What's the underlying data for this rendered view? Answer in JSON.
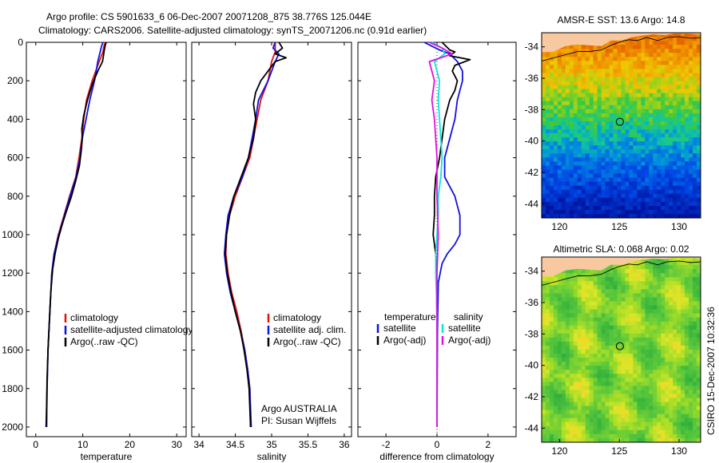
{
  "header": {
    "line1": "Argo profile: CS 5901633_6 06-Dec-2007 20071208_875 38.776S 125.044E",
    "line2": "Climatology: CARS2006. Satellite-adjusted climatology: synTS_20071206.nc (0.91d earlier)"
  },
  "side_label": "CSIRO 15-Dec-2007 10:32:36",
  "colors": {
    "red": "#e01010",
    "blue": "#1010e0",
    "black": "#000000",
    "cyan": "#10e0e0",
    "magenta": "#e010e0"
  },
  "chart_data": [
    {
      "type": "line",
      "panel": "temperature",
      "xlabel": "temperature",
      "xlim": [
        -2,
        32
      ],
      "ylim": [
        2050,
        0
      ],
      "xticks": [
        0,
        10,
        20,
        30
      ],
      "yticks": [
        0,
        200,
        400,
        600,
        800,
        1000,
        1200,
        1400,
        1600,
        1800,
        2000
      ],
      "legend": [
        "climatology",
        "satellite-adjusted climatology",
        "Argo(..raw -QC)"
      ],
      "series": [
        {
          "name": "climatology",
          "color": "red",
          "points": [
            [
              14.8,
              0
            ],
            [
              14.5,
              20
            ],
            [
              14.3,
              50
            ],
            [
              13.5,
              100
            ],
            [
              12,
              200
            ],
            [
              10.8,
              300
            ],
            [
              10.2,
              400
            ],
            [
              9.8,
              500
            ],
            [
              9.2,
              600
            ],
            [
              8.5,
              700
            ],
            [
              7.2,
              800
            ],
            [
              6,
              900
            ],
            [
              4.8,
              1000
            ],
            [
              3.9,
              1100
            ],
            [
              3.4,
              1200
            ],
            [
              3,
              1400
            ],
            [
              2.6,
              1600
            ],
            [
              2.4,
              1800
            ],
            [
              2.3,
              2000
            ]
          ]
        },
        {
          "name": "satellite-adjusted climatology",
          "color": "blue",
          "points": [
            [
              14.3,
              0
            ],
            [
              14,
              20
            ],
            [
              13.7,
              50
            ],
            [
              13.2,
              100
            ],
            [
              12.5,
              200
            ],
            [
              11.5,
              300
            ],
            [
              10.7,
              400
            ],
            [
              9.9,
              500
            ],
            [
              9.4,
              600
            ],
            [
              8.6,
              700
            ],
            [
              7.3,
              800
            ],
            [
              6.1,
              900
            ],
            [
              4.9,
              1000
            ],
            [
              3.9,
              1100
            ],
            [
              3.4,
              1200
            ],
            [
              3,
              1400
            ],
            [
              2.6,
              1600
            ],
            [
              2.4,
              1800
            ],
            [
              2.3,
              2000
            ]
          ]
        },
        {
          "name": "Argo(..raw -QC)",
          "color": "black",
          "points": [
            [
              15,
              0
            ],
            [
              14.8,
              15
            ],
            [
              14.6,
              40
            ],
            [
              14.4,
              70
            ],
            [
              14.2,
              100
            ],
            [
              13.2,
              150
            ],
            [
              12,
              220
            ],
            [
              11,
              300
            ],
            [
              10.2,
              380
            ],
            [
              9.8,
              450
            ],
            [
              9.9,
              500
            ],
            [
              9.7,
              560
            ],
            [
              9.3,
              640
            ],
            [
              8.5,
              720
            ],
            [
              7.6,
              800
            ],
            [
              6.5,
              880
            ],
            [
              5.6,
              950
            ],
            [
              4.8,
              1020
            ],
            [
              4.1,
              1100
            ],
            [
              3.6,
              1180
            ],
            [
              3.2,
              1300
            ],
            [
              2.9,
              1450
            ],
            [
              2.6,
              1600
            ],
            [
              2.4,
              1750
            ],
            [
              2.3,
              1900
            ],
            [
              2.2,
              2000
            ]
          ]
        }
      ]
    },
    {
      "type": "line",
      "panel": "salinity",
      "xlabel": "salinity",
      "xlim": [
        33.9,
        36.1
      ],
      "ylim": [
        2050,
        0
      ],
      "xticks": [
        34,
        34.5,
        35,
        35.5,
        36
      ],
      "xticklabels": [
        "34",
        "34.5",
        "35",
        "35.5",
        "36"
      ],
      "legend": [
        "climatology",
        "satellite adj. clim.",
        "Argo(..raw -QC)"
      ],
      "annotations": [
        "Argo AUSTRALIA",
        "PI: Susan Wijffels"
      ],
      "series": [
        {
          "name": "climatology",
          "color": "red",
          "points": [
            [
              35.05,
              0
            ],
            [
              35.05,
              50
            ],
            [
              35,
              100
            ],
            [
              34.95,
              200
            ],
            [
              34.85,
              300
            ],
            [
              34.8,
              400
            ],
            [
              34.75,
              500
            ],
            [
              34.7,
              600
            ],
            [
              34.6,
              700
            ],
            [
              34.5,
              800
            ],
            [
              34.42,
              900
            ],
            [
              34.38,
              1000
            ],
            [
              34.37,
              1100
            ],
            [
              34.4,
              1200
            ],
            [
              34.45,
              1300
            ],
            [
              34.52,
              1400
            ],
            [
              34.58,
              1500
            ],
            [
              34.63,
              1600
            ],
            [
              34.67,
              1700
            ],
            [
              34.7,
              1800
            ],
            [
              34.71,
              2000
            ]
          ]
        },
        {
          "name": "satellite adj. clim.",
          "color": "blue",
          "points": [
            [
              35.05,
              0
            ],
            [
              35.02,
              30
            ],
            [
              35.1,
              60
            ],
            [
              35.05,
              100
            ],
            [
              34.95,
              200
            ],
            [
              34.82,
              300
            ],
            [
              34.78,
              400
            ],
            [
              34.73,
              500
            ],
            [
              34.68,
              600
            ],
            [
              34.6,
              700
            ],
            [
              34.48,
              800
            ],
            [
              34.4,
              900
            ],
            [
              34.37,
              1000
            ],
            [
              34.35,
              1100
            ],
            [
              34.38,
              1200
            ],
            [
              34.43,
              1300
            ],
            [
              34.5,
              1400
            ],
            [
              34.57,
              1500
            ],
            [
              34.63,
              1600
            ],
            [
              34.67,
              1700
            ],
            [
              34.7,
              1800
            ],
            [
              34.72,
              2000
            ]
          ]
        },
        {
          "name": "Argo(..raw -QC)",
          "color": "black",
          "points": [
            [
              35.1,
              0
            ],
            [
              35.15,
              30
            ],
            [
              35.05,
              60
            ],
            [
              35.2,
              80
            ],
            [
              35.05,
              100
            ],
            [
              34.95,
              150
            ],
            [
              34.85,
              200
            ],
            [
              34.78,
              260
            ],
            [
              34.75,
              320
            ],
            [
              34.78,
              400
            ],
            [
              34.75,
              500
            ],
            [
              34.68,
              600
            ],
            [
              34.58,
              700
            ],
            [
              34.48,
              800
            ],
            [
              34.42,
              900
            ],
            [
              34.38,
              1000
            ],
            [
              34.36,
              1100
            ],
            [
              34.39,
              1200
            ],
            [
              34.44,
              1300
            ],
            [
              34.5,
              1400
            ],
            [
              34.57,
              1500
            ],
            [
              34.62,
              1600
            ],
            [
              34.66,
              1700
            ],
            [
              34.69,
              1800
            ],
            [
              34.7,
              1900
            ],
            [
              34.71,
              2000
            ]
          ]
        }
      ]
    },
    {
      "type": "line",
      "panel": "difference",
      "xlabel": "difference from climatology",
      "xlim": [
        -3.1,
        3.1
      ],
      "ylim": [
        2050,
        0
      ],
      "xticks": [
        -2,
        0,
        2
      ],
      "legend_groups": [
        {
          "title": "temperature",
          "entries": [
            "satellite",
            "Argo(-adj)"
          ]
        },
        {
          "title": "salinity",
          "entries": [
            "satellite",
            "Argo(-adj)"
          ]
        }
      ],
      "series": [
        {
          "name": "temperature satellite",
          "color": "blue",
          "points": [
            [
              -0.5,
              0
            ],
            [
              -0.2,
              20
            ],
            [
              0.1,
              40
            ],
            [
              0.5,
              60
            ],
            [
              0.8,
              100
            ],
            [
              1.0,
              150
            ],
            [
              1.0,
              200
            ],
            [
              0.8,
              300
            ],
            [
              0.7,
              400
            ],
            [
              0.5,
              500
            ],
            [
              0.3,
              600
            ],
            [
              0.3,
              700
            ],
            [
              0.5,
              750
            ],
            [
              0.7,
              800
            ],
            [
              0.8,
              850
            ],
            [
              0.9,
              900
            ],
            [
              0.9,
              950
            ],
            [
              0.9,
              1000
            ],
            [
              0.7,
              1050
            ],
            [
              0.4,
              1100
            ],
            [
              0.2,
              1150
            ],
            [
              0.05,
              1250
            ],
            [
              0.02,
              1500
            ],
            [
              0,
              2000
            ]
          ]
        },
        {
          "name": "temperature Argo(-adj)",
          "color": "black",
          "points": [
            [
              0.2,
              0
            ],
            [
              0.5,
              40
            ],
            [
              0.7,
              50
            ],
            [
              0.5,
              70
            ],
            [
              1.3,
              90
            ],
            [
              0.7,
              120
            ],
            [
              0.6,
              150
            ],
            [
              0.8,
              200
            ],
            [
              0.7,
              250
            ],
            [
              0.5,
              300
            ],
            [
              0.3,
              400
            ],
            [
              0.2,
              500
            ],
            [
              0.1,
              600
            ],
            [
              -0.05,
              700
            ],
            [
              -0.1,
              800
            ],
            [
              -0.1,
              900
            ],
            [
              -0.15,
              1000
            ],
            [
              -0.05,
              1100
            ],
            [
              -0.02,
              1200
            ],
            [
              0,
              1500
            ],
            [
              0,
              2000
            ]
          ]
        },
        {
          "name": "salinity satellite",
          "color": "cyan",
          "points": [
            [
              -0.2,
              0
            ],
            [
              0.2,
              30
            ],
            [
              0.3,
              60
            ],
            [
              -0.1,
              100
            ],
            [
              0.1,
              200
            ],
            [
              0.05,
              300
            ],
            [
              0.1,
              400
            ],
            [
              0.15,
              500
            ],
            [
              0.2,
              600
            ],
            [
              0.15,
              700
            ],
            [
              0.05,
              800
            ],
            [
              0.05,
              900
            ],
            [
              0.0,
              1000
            ],
            [
              -0.05,
              1100
            ],
            [
              -0.05,
              1200
            ],
            [
              0,
              1400
            ],
            [
              0,
              2000
            ]
          ]
        },
        {
          "name": "salinity Argo(-adj)",
          "color": "magenta",
          "points": [
            [
              -0.3,
              0
            ],
            [
              0.2,
              30
            ],
            [
              0.6,
              60
            ],
            [
              -0.3,
              100
            ],
            [
              -0.2,
              150
            ],
            [
              -0.1,
              200
            ],
            [
              -0.2,
              300
            ],
            [
              -0.1,
              400
            ],
            [
              -0.05,
              500
            ],
            [
              0,
              600
            ],
            [
              0,
              800
            ],
            [
              0.05,
              1000
            ],
            [
              0,
              1200
            ],
            [
              0,
              1400
            ],
            [
              0,
              2000
            ]
          ]
        }
      ]
    },
    {
      "type": "heatmap",
      "panel": "sst-map",
      "title": "AMSR-E SST: 13.6 Argo: 14.8",
      "xlim": [
        118.5,
        131.8
      ],
      "ylim": [
        -44.9,
        -33.1
      ],
      "xticks": [
        120,
        125,
        130
      ],
      "yticks": [
        -34,
        -36,
        -38,
        -40,
        -42,
        -44
      ],
      "float_marker": {
        "lon": 125.044,
        "lat": -38.776
      }
    },
    {
      "type": "heatmap",
      "panel": "sla-map",
      "title": "Altimetric SLA: 0.068 Argo: 0.02",
      "xlim": [
        118.5,
        131.8
      ],
      "ylim": [
        -44.9,
        -33.1
      ],
      "xticks": [
        120,
        125,
        130
      ],
      "yticks": [
        -34,
        -36,
        -38,
        -40,
        -42,
        -44
      ],
      "float_marker": {
        "lon": 125.044,
        "lat": -38.776
      }
    }
  ]
}
